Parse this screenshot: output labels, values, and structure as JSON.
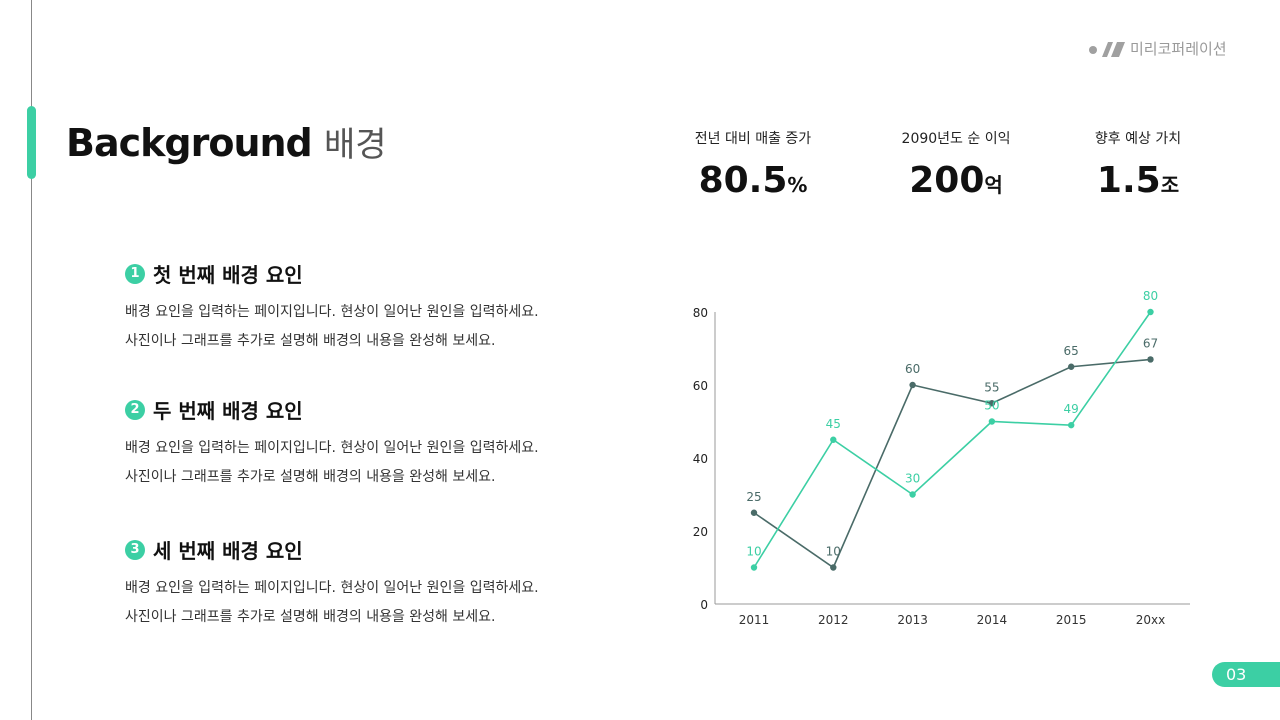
{
  "logo": {
    "text": "미리코퍼레이션"
  },
  "title": {
    "en": "Background",
    "ko": "배경"
  },
  "stats": [
    {
      "label": "전년 대비 매출 증가",
      "value": "80.5",
      "unit": "%"
    },
    {
      "label": "2090년도 순 이익",
      "value": "200",
      "unit": "억"
    },
    {
      "label": "향후 예상 가치",
      "value": "1.5",
      "unit": "조"
    }
  ],
  "items": [
    {
      "num": "1",
      "heading": "첫 번째 배경 요인",
      "line1": "배경 요인을 입력하는 페이지입니다. 현상이 일어난 원인을 입력하세요.",
      "line2": "사진이나 그래프를 추가로 설명해 배경의 내용을 완성해 보세요."
    },
    {
      "num": "2",
      "heading": "두 번째 배경 요인",
      "line1": "배경 요인을 입력하는 페이지입니다. 현상이 일어난 원인을 입력하세요.",
      "line2": "사진이나 그래프를 추가로 설명해 배경의 내용을 완성해 보세요."
    },
    {
      "num": "3",
      "heading": "세 번째 배경 요인",
      "line1": "배경 요인을 입력하는 페이지입니다. 현상이 일어난 원인을 입력하세요.",
      "line2": "사진이나 그래프를 추가로 설명해 배경의 내용을 완성해 보세요."
    }
  ],
  "page_number": "03",
  "colors": {
    "accent": "#3ccfa4",
    "dark_series": "#4a6b68"
  },
  "chart_data": {
    "type": "line",
    "categories": [
      "2011",
      "2012",
      "2013",
      "2014",
      "2015",
      "20xx"
    ],
    "series": [
      {
        "values": [
          25,
          10,
          60,
          55,
          65,
          67
        ],
        "color": "#4a6b68"
      },
      {
        "values": [
          10,
          45,
          30,
          50,
          49,
          80
        ],
        "color": "#3ccfa4"
      }
    ],
    "yticks": [
      0,
      20,
      40,
      60,
      80
    ],
    "ylim": [
      0,
      80
    ],
    "grid": false,
    "data_labels": true
  }
}
